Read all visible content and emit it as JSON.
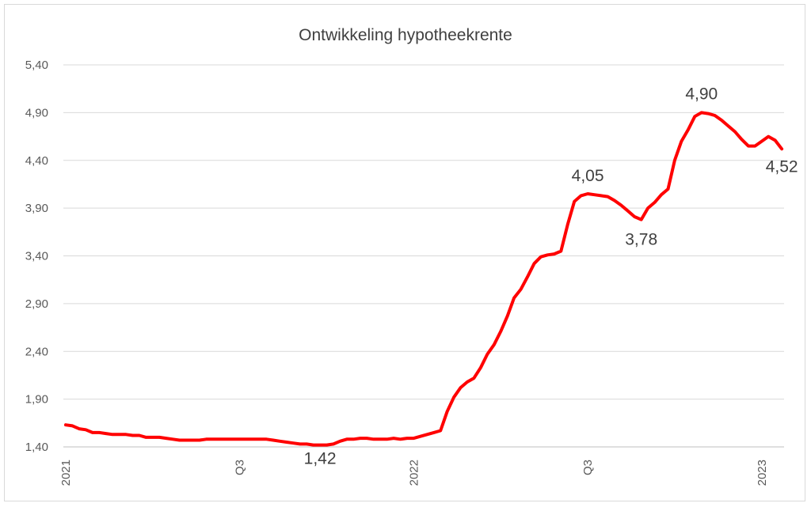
{
  "chart_data": {
    "type": "line",
    "title": "Ontwikkeling hypotheekrente",
    "xlabel": "",
    "ylabel": "",
    "ylim": [
      1.4,
      5.4
    ],
    "yticks": [
      "1,40",
      "1,90",
      "2,40",
      "2,90",
      "3,40",
      "3,90",
      "4,40",
      "4,90",
      "5,40"
    ],
    "x_axis_labels": [
      {
        "label": "2021",
        "x": 0
      },
      {
        "label": "Q3",
        "x": 26
      },
      {
        "label": "2022",
        "x": 52
      },
      {
        "label": "Q3",
        "x": 78
      },
      {
        "label": "2023",
        "x": 104
      }
    ],
    "grid": true,
    "legend": "none",
    "line_color": "#ff0000",
    "series": [
      {
        "values": [
          1.63,
          1.62,
          1.59,
          1.58,
          1.55,
          1.55,
          1.54,
          1.53,
          1.53,
          1.53,
          1.52,
          1.52,
          1.5,
          1.5,
          1.5,
          1.49,
          1.48,
          1.47,
          1.47,
          1.47,
          1.47,
          1.48,
          1.48,
          1.48,
          1.48,
          1.48,
          1.48,
          1.48,
          1.48,
          1.48,
          1.48,
          1.47,
          1.46,
          1.45,
          1.44,
          1.43,
          1.43,
          1.42,
          1.42,
          1.42,
          1.43,
          1.46,
          1.48,
          1.48,
          1.49,
          1.49,
          1.48,
          1.48,
          1.48,
          1.49,
          1.48,
          1.49,
          1.49,
          1.51,
          1.53,
          1.55,
          1.57,
          1.77,
          1.92,
          2.02,
          2.08,
          2.12,
          2.23,
          2.37,
          2.47,
          2.61,
          2.77,
          2.96,
          3.05,
          3.18,
          3.32,
          3.39,
          3.41,
          3.42,
          3.45,
          3.73,
          3.97,
          4.03,
          4.05,
          4.04,
          4.03,
          4.02,
          3.98,
          3.93,
          3.87,
          3.81,
          3.78,
          3.9,
          3.96,
          4.04,
          4.1,
          4.4,
          4.6,
          4.72,
          4.86,
          4.9,
          4.89,
          4.87,
          4.82,
          4.76,
          4.7,
          4.62,
          4.55,
          4.55,
          4.6,
          4.65,
          4.61,
          4.52
        ]
      }
    ],
    "annotations": [
      {
        "label": "1,42",
        "index": 38
      },
      {
        "label": "4,05",
        "index": 78
      },
      {
        "label": "3,78",
        "index": 86
      },
      {
        "label": "4,90",
        "index": 95
      },
      {
        "label": "4,52",
        "index": 107
      }
    ]
  }
}
